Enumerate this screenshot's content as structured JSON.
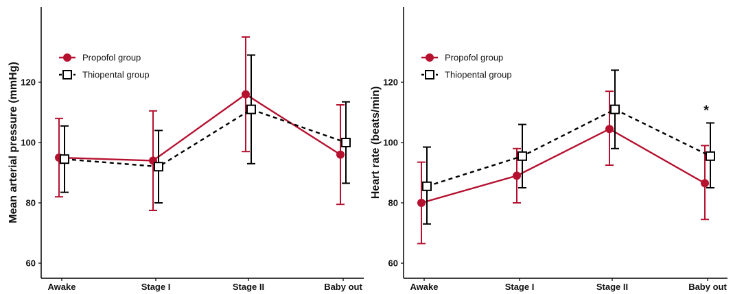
{
  "colors": {
    "propofol": "#b5112f",
    "thiopental": "#000000",
    "axis": "#000000"
  },
  "legend": [
    {
      "label": "Propofol group",
      "marker": "filled-circle",
      "line": "solid"
    },
    {
      "label": "Thiopental group",
      "marker": "open-square",
      "line": "dashed"
    }
  ],
  "chart_data": [
    {
      "type": "line",
      "title": "",
      "xlabel": "",
      "ylabel": "Mean arterial pressure (mmHg)",
      "categories": [
        "Awake",
        "Stage I",
        "Stage II",
        "Baby out"
      ],
      "ylim": [
        55,
        145
      ],
      "yticks": [
        60,
        80,
        100,
        120
      ],
      "grid": false,
      "legend_position": "top-left",
      "annotations": [],
      "series": [
        {
          "name": "Propofol group",
          "values": [
            95,
            94,
            116,
            96
          ],
          "err_low": [
            82,
            77.5,
            97,
            79.5
          ],
          "err_high": [
            108,
            110.5,
            135,
            112.5
          ]
        },
        {
          "name": "Thiopental group",
          "values": [
            94.5,
            92,
            111,
            100
          ],
          "err_low": [
            83.5,
            80,
            93,
            86.5
          ],
          "err_high": [
            105.5,
            104,
            129,
            113.5
          ]
        }
      ]
    },
    {
      "type": "line",
      "title": "",
      "xlabel": "",
      "ylabel": "Heart rate (beats/min)",
      "categories": [
        "Awake",
        "Stage I",
        "Stage II",
        "Baby out"
      ],
      "ylim": [
        55,
        145
      ],
      "yticks": [
        60,
        80,
        100,
        120
      ],
      "grid": false,
      "legend_position": "top-left",
      "annotations": [
        {
          "text": "*",
          "category": "Baby out"
        }
      ],
      "series": [
        {
          "name": "Propofol group",
          "values": [
            80,
            89,
            104.5,
            86.5
          ],
          "err_low": [
            66.5,
            80,
            92.5,
            74.5
          ],
          "err_high": [
            93.5,
            98,
            117,
            99
          ]
        },
        {
          "name": "Thiopental group",
          "values": [
            85.5,
            95.5,
            111,
            95.5
          ],
          "err_low": [
            73,
            85,
            98,
            85
          ],
          "err_high": [
            98.5,
            106,
            124,
            106.5
          ]
        }
      ]
    }
  ]
}
